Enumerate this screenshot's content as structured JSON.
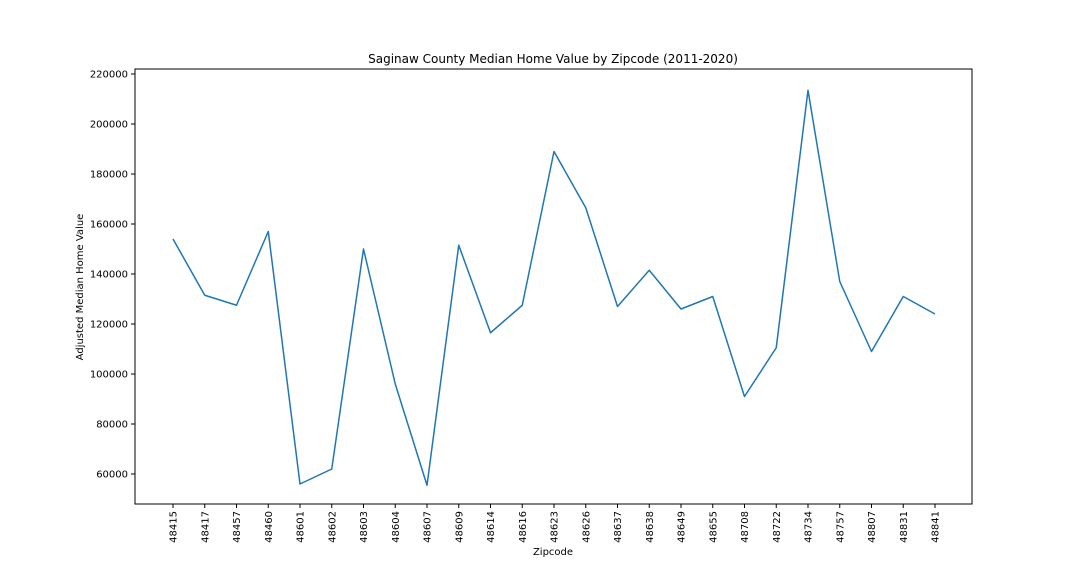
{
  "chart_data": {
    "type": "line",
    "title": "Saginaw County Median Home Value by Zipcode (2011-2020)",
    "xlabel": "Zipcode",
    "ylabel": "Adjusted Median Home Value",
    "categories": [
      "48415",
      "48417",
      "48457",
      "48460",
      "48601",
      "48602",
      "48603",
      "48604",
      "48607",
      "48609",
      "48614",
      "48616",
      "48623",
      "48626",
      "48637",
      "48638",
      "48649",
      "48655",
      "48708",
      "48722",
      "48734",
      "48757",
      "48807",
      "48831",
      "48841"
    ],
    "values": [
      154000,
      131500,
      127500,
      157000,
      56000,
      62000,
      150000,
      96000,
      55500,
      151500,
      116500,
      127500,
      189000,
      166500,
      127000,
      141500,
      126000,
      131000,
      91000,
      110500,
      213500,
      137000,
      109000,
      131000,
      124000
    ],
    "yticks": [
      60000,
      80000,
      100000,
      120000,
      140000,
      160000,
      180000,
      200000,
      220000
    ],
    "ylim": [
      48000,
      222000
    ],
    "grid": false,
    "line_color": "#1f77b4"
  }
}
